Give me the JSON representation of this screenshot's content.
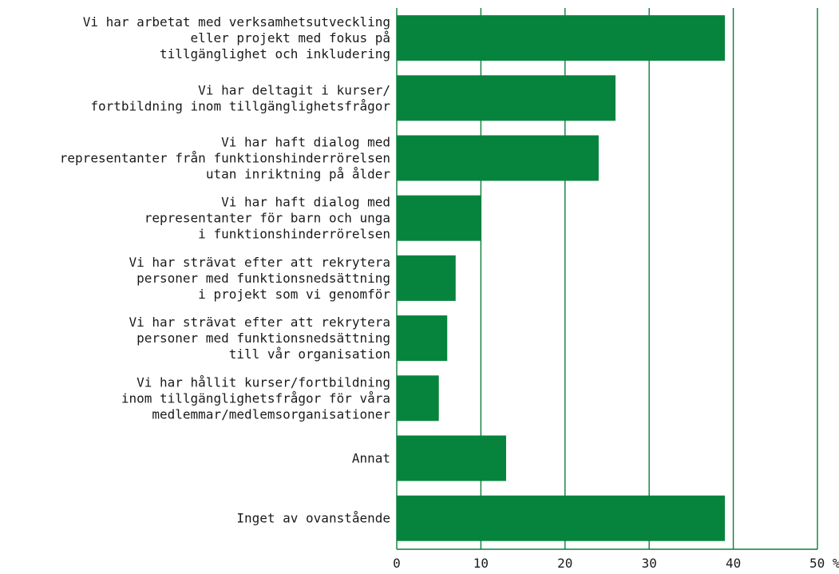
{
  "colors": {
    "bar": "#06843d",
    "grid": "#0a7f3a",
    "text": "#1a1a1a"
  },
  "chart_data": {
    "type": "bar",
    "orientation": "horizontal",
    "title": "",
    "xlabel": "",
    "ylabel": "",
    "unit": "%",
    "xlim": [
      0,
      50
    ],
    "ticks": [
      0,
      10,
      20,
      30,
      40,
      50
    ],
    "tick_labels": [
      "0",
      "10",
      "20",
      "30",
      "40",
      "50 %"
    ],
    "grid": true,
    "categories": [
      [
        "Vi har arbetat med verksamhetsutveckling",
        "eller projekt med fokus på",
        "tillgänglighet och inkludering"
      ],
      [
        "Vi har deltagit i kurser/",
        "fortbildning inom tillgänglighetsfrågor"
      ],
      [
        "Vi har haft dialog med",
        "representanter från funktionshinderrörelsen",
        "utan inriktning på ålder"
      ],
      [
        "Vi har haft dialog med",
        "representanter för barn och unga",
        "i funktionshinderrörelsen"
      ],
      [
        "Vi har strävat efter att rekrytera",
        "personer med funktionsnedsättning",
        "i projekt som vi genomför"
      ],
      [
        "Vi har strävat efter att rekrytera",
        "personer med funktionsnedsättning",
        "till vår organisation"
      ],
      [
        "Vi har hållit kurser/fortbildning",
        "inom tillgänglighetsfrågor för våra",
        "medlemmar/medlemsorganisationer"
      ],
      [
        "Annat"
      ],
      [
        "Inget av ovanstående"
      ]
    ],
    "values": [
      39,
      26,
      24,
      10,
      7,
      6,
      5,
      13,
      39
    ]
  }
}
